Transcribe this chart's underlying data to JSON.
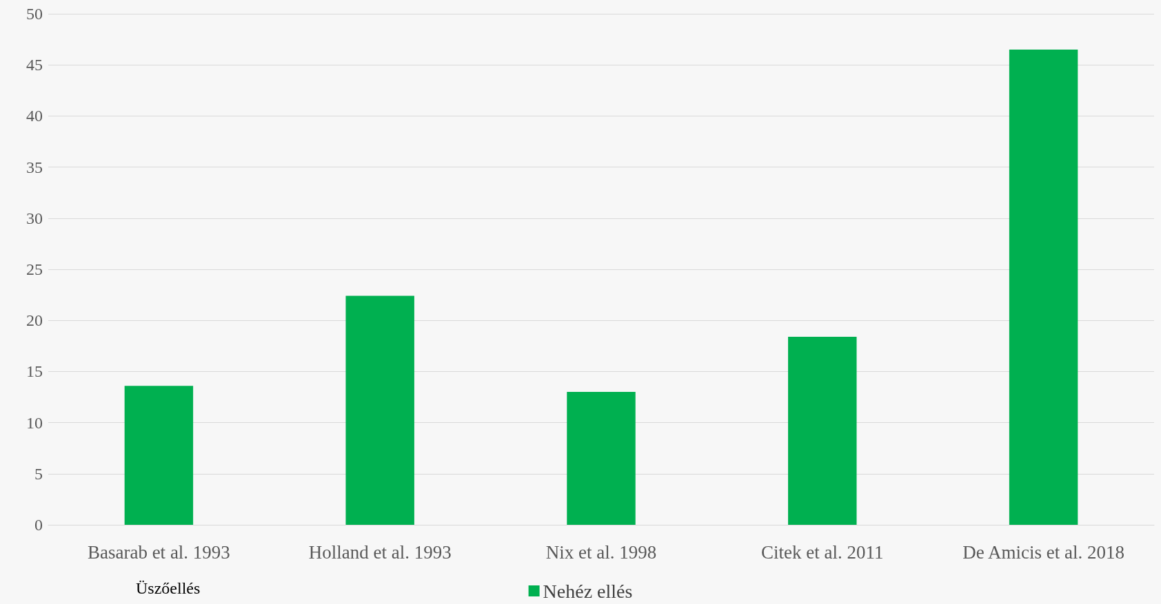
{
  "chart_data": {
    "type": "bar",
    "xlabel": "Üszőellés",
    "categories": [
      "Basarab et al. 1993",
      "Holland et al. 1993",
      "Nix et al. 1998",
      "Citek et al. 2011",
      "De Amicis et al. 2018"
    ],
    "series": [
      {
        "name": "Nehéz ellés",
        "color": "#00b050",
        "values": [
          13.6,
          22.4,
          13.0,
          18.4,
          46.5
        ]
      }
    ],
    "ylim": [
      0,
      50
    ],
    "yticks": [
      0,
      5,
      10,
      15,
      20,
      25,
      30,
      35,
      40,
      45,
      50
    ],
    "grid": "y",
    "legend": "bottom"
  }
}
